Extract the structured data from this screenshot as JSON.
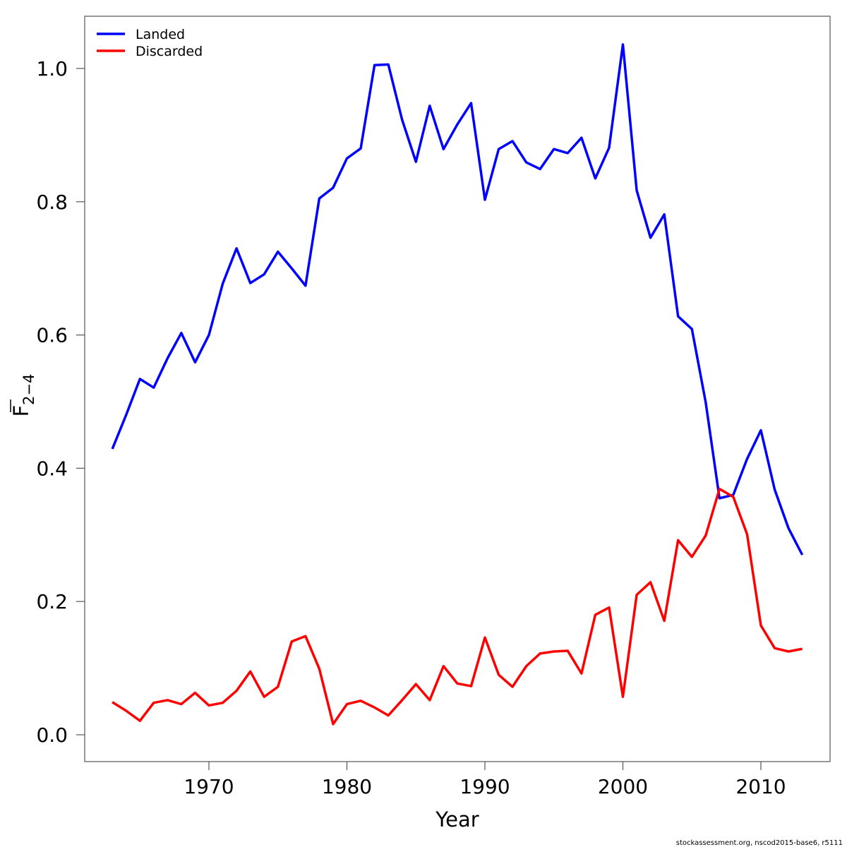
{
  "chart_data": {
    "type": "line",
    "title": "",
    "xlabel": "Year",
    "ylabel": "F2−4 (mean)",
    "ylabel_main": "F",
    "ylabel_sub": "2−4",
    "xlim": [
      1961,
      2015
    ],
    "ylim": [
      -0.04,
      1.08
    ],
    "xticks": [
      1970,
      1980,
      1990,
      2000,
      2010
    ],
    "yticks": [
      "0.0",
      "0.2",
      "0.4",
      "0.6",
      "0.8",
      "1.0"
    ],
    "legend_position": "top-left",
    "grid": false,
    "x": [
      1963,
      1964,
      1965,
      1966,
      1967,
      1968,
      1969,
      1970,
      1971,
      1972,
      1973,
      1974,
      1975,
      1976,
      1977,
      1978,
      1979,
      1980,
      1981,
      1982,
      1983,
      1984,
      1985,
      1986,
      1987,
      1988,
      1989,
      1990,
      1991,
      1992,
      1993,
      1994,
      1995,
      1996,
      1997,
      1998,
      1999,
      2000,
      2001,
      2002,
      2003,
      2004,
      2005,
      2006,
      2007,
      2008,
      2009,
      2010,
      2011,
      2012,
      2013
    ],
    "series": [
      {
        "name": "Landed",
        "color": "#0000ff",
        "values": [
          0.429,
          0.48,
          0.534,
          0.521,
          0.565,
          0.603,
          0.559,
          0.6,
          0.677,
          0.73,
          0.678,
          0.691,
          0.725,
          0.7,
          0.674,
          0.805,
          0.821,
          0.865,
          0.88,
          1.005,
          1.006,
          0.923,
          0.86,
          0.944,
          0.879,
          0.916,
          0.948,
          0.803,
          0.879,
          0.891,
          0.859,
          0.849,
          0.879,
          0.873,
          0.896,
          0.835,
          0.881,
          1.036,
          0.817,
          0.746,
          0.781,
          0.628,
          0.609,
          0.499,
          0.355,
          0.36,
          0.414,
          0.457,
          0.368,
          0.31,
          0.27
        ]
      },
      {
        "name": "Discarded",
        "color": "#ff0000",
        "values": [
          0.049,
          0.036,
          0.021,
          0.048,
          0.052,
          0.046,
          0.063,
          0.044,
          0.048,
          0.066,
          0.095,
          0.057,
          0.072,
          0.14,
          0.148,
          0.099,
          0.016,
          0.046,
          0.051,
          0.041,
          0.029,
          0.052,
          0.076,
          0.052,
          0.103,
          0.077,
          0.073,
          0.146,
          0.09,
          0.072,
          0.103,
          0.122,
          0.125,
          0.126,
          0.092,
          0.18,
          0.191,
          0.057,
          0.21,
          0.229,
          0.171,
          0.292,
          0.267,
          0.299,
          0.369,
          0.357,
          0.301,
          0.164,
          0.13,
          0.125,
          0.129
        ]
      }
    ],
    "footer": "stockassessment.org, nscod2015-base6, r5111"
  }
}
